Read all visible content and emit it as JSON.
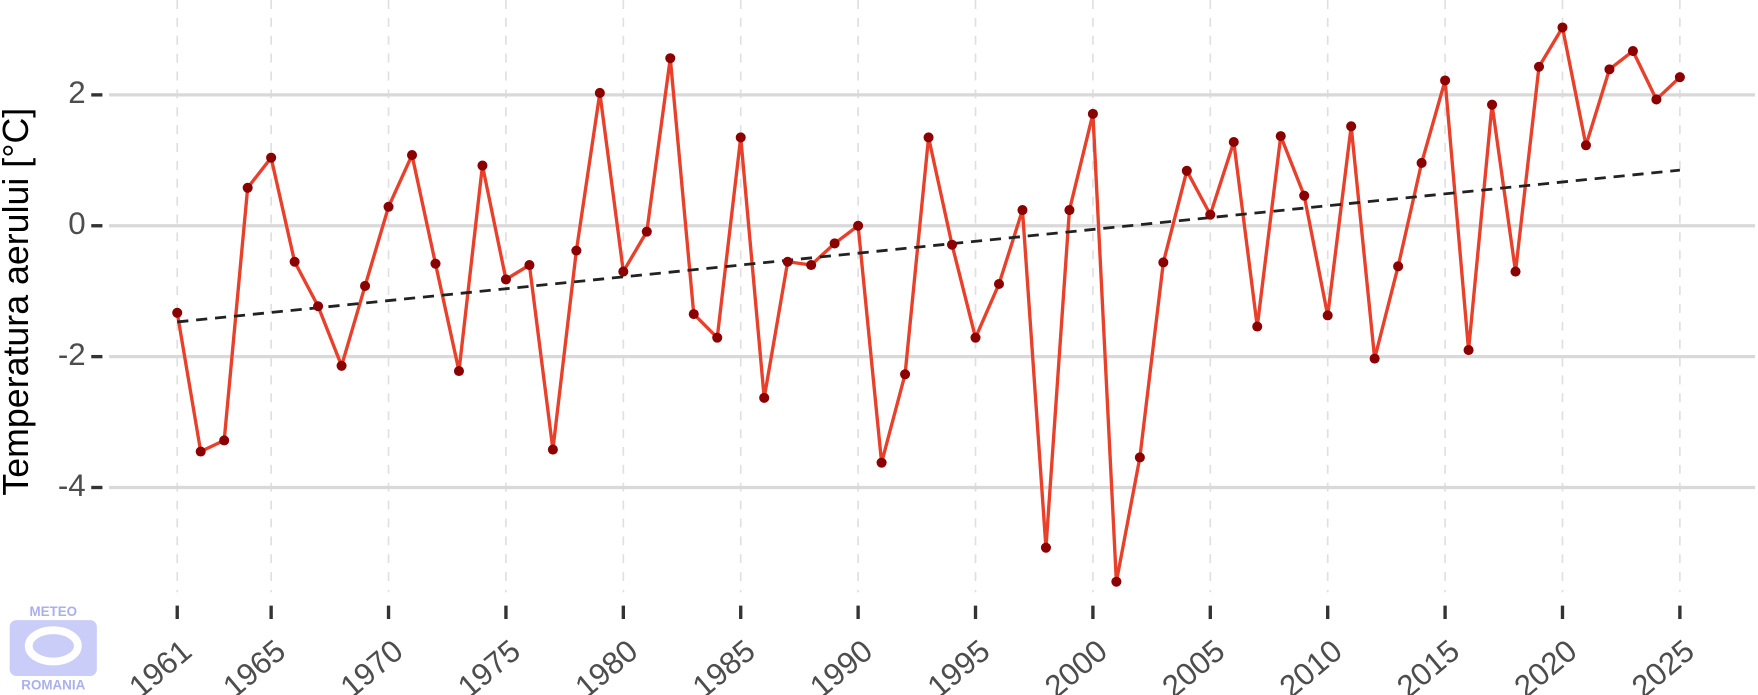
{
  "chart_data": {
    "type": "line",
    "y_label": "Temperatura aerului [°C]",
    "logo": [
      "METEO",
      "ROMANIA"
    ],
    "x": [
      1961,
      1962,
      1963,
      1964,
      1965,
      1966,
      1967,
      1968,
      1969,
      1970,
      1971,
      1972,
      1973,
      1974,
      1975,
      1976,
      1977,
      1978,
      1979,
      1980,
      1981,
      1982,
      1983,
      1984,
      1985,
      1986,
      1987,
      1988,
      1989,
      1990,
      1991,
      1992,
      1993,
      1994,
      1995,
      1996,
      1997,
      1998,
      1999,
      2000,
      2001,
      2002,
      2003,
      2004,
      2005,
      2006,
      2007,
      2008,
      2009,
      2010,
      2011,
      2012,
      2013,
      2014,
      2015,
      2016,
      2017,
      2018,
      2019,
      2020,
      2021,
      2022,
      2023,
      2024,
      2025
    ],
    "series": [
      {
        "color": "#e8402a",
        "marker_color": "#8b0000",
        "values": [
          -1.33,
          -3.45,
          -3.28,
          0.58,
          1.04,
          -0.55,
          -1.23,
          -2.14,
          -0.92,
          0.29,
          1.08,
          -0.58,
          -2.22,
          0.92,
          -0.82,
          -0.6,
          -3.42,
          -0.38,
          2.03,
          -0.7,
          -0.09,
          2.56,
          -1.35,
          -1.71,
          1.35,
          -2.63,
          -0.55,
          -0.6,
          -0.27,
          0.0,
          -3.62,
          -2.27,
          1.35,
          -0.29,
          -1.71,
          -0.89,
          0.24,
          -4.92,
          0.24,
          1.71,
          -5.44,
          -3.54,
          -0.56,
          0.84,
          0.17,
          1.28,
          -1.54,
          1.37,
          0.46,
          -1.37,
          1.52,
          -2.03,
          -0.62,
          0.96,
          2.22,
          -1.9,
          1.85,
          -0.7,
          2.43,
          3.03,
          1.23,
          2.39,
          2.67,
          1.93,
          2.27
        ]
      }
    ],
    "trend": {
      "x": [
        1961,
        2025
      ],
      "values": [
        -1.47,
        0.85
      ],
      "color": "#222222"
    },
    "xlim": [
      1958.1,
      2028.2
    ],
    "xticks": [
      1961,
      1965,
      1970,
      1975,
      1980,
      1985,
      1990,
      1995,
      2000,
      2005,
      2010,
      2015,
      2020,
      2025
    ],
    "ylim": [
      -5.6,
      3.45
    ],
    "yticks": [
      -4,
      -2,
      0,
      2
    ],
    "grid": true
  }
}
